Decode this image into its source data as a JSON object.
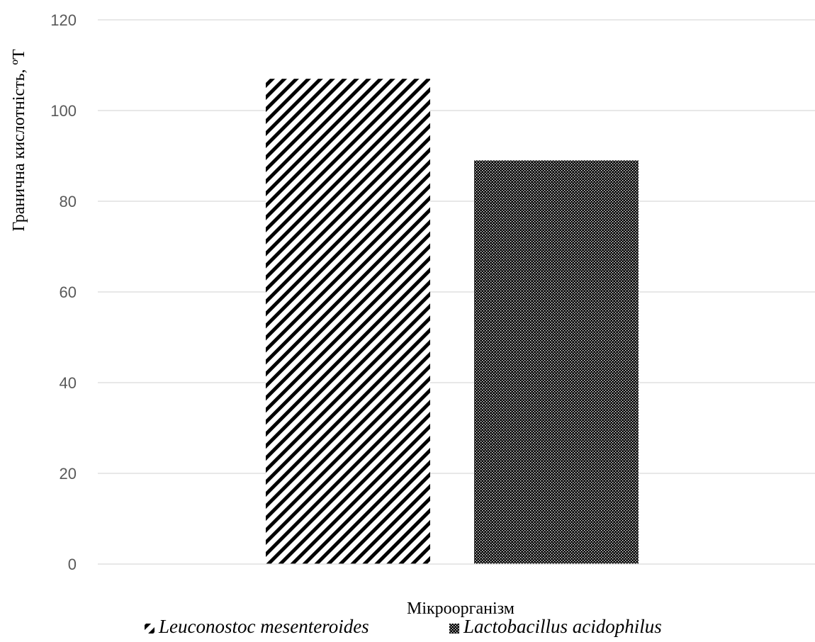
{
  "chart_data": {
    "type": "bar",
    "title": "",
    "xlabel": "Мікроорганізм",
    "ylabel": "Гранична кислотність, ºT",
    "ylim": [
      0,
      120
    ],
    "yticks": [
      0,
      20,
      40,
      60,
      80,
      100,
      120
    ],
    "grid": true,
    "legend_position": "bottom",
    "categories": [
      "Мікроорганізм"
    ],
    "series": [
      {
        "name": "Leuconostoc mesenteroides",
        "values": [
          107
        ],
        "pattern": "diagonal-stripes",
        "color": "#000000"
      },
      {
        "name": "Lactobacillus acidophilus",
        "values": [
          89
        ],
        "pattern": "dense-dots",
        "color": "#000000"
      }
    ]
  }
}
